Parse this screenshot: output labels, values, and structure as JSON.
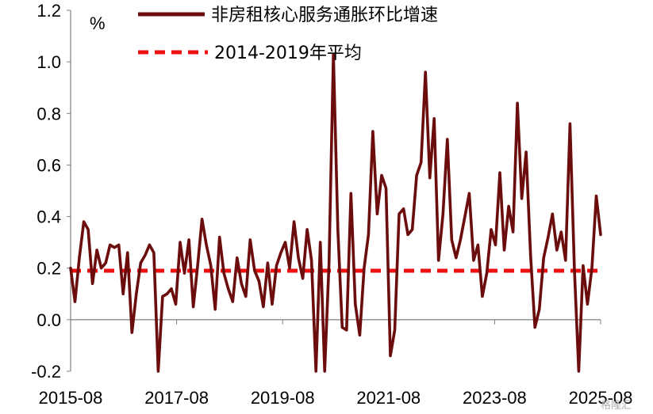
{
  "chart_data": {
    "type": "line",
    "unit_label": "%",
    "ylim": [
      -0.2,
      1.2
    ],
    "yticks": [
      "1.2",
      "1.0",
      "0.8",
      "0.6",
      "0.4",
      "0.2",
      "0.0",
      "-0.2"
    ],
    "xtick_labels": [
      "2015-08",
      "2017-08",
      "2019-08",
      "2021-08",
      "2023-08",
      "2025-08"
    ],
    "grid": false,
    "legend_position": "top-center",
    "series": [
      {
        "name": "非房租核心服务通胀环比增速",
        "style": "solid",
        "color": "#6b0d0d",
        "values": [
          0.2,
          0.07,
          0.24,
          0.38,
          0.35,
          0.14,
          0.27,
          0.2,
          0.22,
          0.29,
          0.28,
          0.29,
          0.1,
          0.26,
          -0.05,
          0.1,
          0.22,
          0.25,
          0.29,
          0.26,
          -0.2,
          0.09,
          0.1,
          0.12,
          0.06,
          0.3,
          0.18,
          0.31,
          0.05,
          0.21,
          0.39,
          0.29,
          0.21,
          0.04,
          0.32,
          0.18,
          0.12,
          0.07,
          0.24,
          0.14,
          0.09,
          0.31,
          0.19,
          0.15,
          0.05,
          0.22,
          0.06,
          0.21,
          0.26,
          0.3,
          0.2,
          0.38,
          0.24,
          0.16,
          0.35,
          0.23,
          -0.2,
          0.3,
          -0.2,
          0.22,
          1.03,
          0.35,
          -0.03,
          -0.04,
          0.49,
          0.06,
          -0.06,
          0.2,
          0.33,
          0.73,
          0.41,
          0.56,
          0.51,
          -0.14,
          -0.04,
          0.41,
          0.43,
          0.33,
          0.35,
          0.56,
          0.61,
          0.96,
          0.55,
          0.78,
          0.23,
          0.41,
          0.7,
          0.31,
          0.24,
          0.31,
          0.4,
          0.49,
          0.23,
          0.29,
          0.09,
          0.18,
          0.35,
          0.29,
          0.57,
          0.27,
          0.44,
          0.34,
          0.84,
          0.47,
          0.65,
          0.25,
          -0.03,
          0.04,
          0.24,
          0.32,
          0.41,
          0.27,
          0.34,
          0.23,
          0.76,
          0.2,
          -0.2,
          0.21,
          0.06,
          0.2,
          0.48,
          0.33
        ]
      },
      {
        "name": "2014-2019年平均",
        "style": "dashed",
        "color": "#ee1111",
        "values": [
          0.19
        ]
      }
    ]
  },
  "watermark": "格隆汇"
}
